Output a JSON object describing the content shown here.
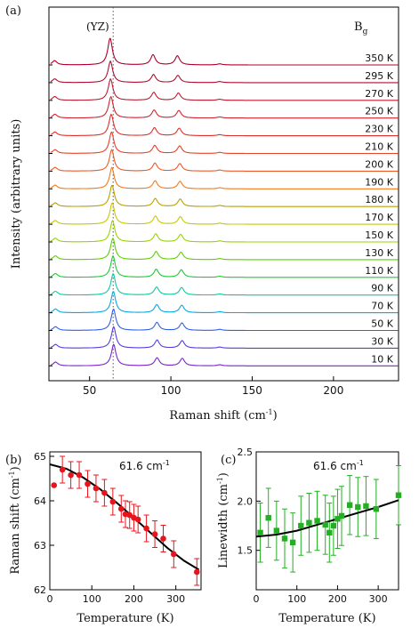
{
  "chart_data": [
    {
      "panel_label": "(a)",
      "type": "line",
      "annotation": "(YZ)",
      "symmetry_label": "B",
      "symmetry_subscript": "g",
      "xlabel": "Raman shift (cm",
      "xlabel_sup": "-1",
      "xlabel_end": ")",
      "ylabel": "Intensity (arbitrary units)",
      "xlim": [
        25,
        240
      ],
      "xticks": [
        50,
        100,
        150,
        200
      ],
      "dotted_line_x": 64.5,
      "series": [
        {
          "name": "350 K",
          "color": "#b0002a",
          "peaks": [
            [
              62.6,
              1.0
            ],
            [
              89.0,
              0.38
            ],
            [
              104.0,
              0.34
            ],
            [
              28.5,
              0.16
            ],
            [
              130.0,
              0.04
            ]
          ]
        },
        {
          "name": "295 K",
          "color": "#b00f30",
          "peaks": [
            [
              62.8,
              0.8
            ],
            [
              89.3,
              0.3
            ],
            [
              104.3,
              0.27
            ],
            [
              28.6,
              0.14
            ],
            [
              130.0,
              0.04
            ]
          ]
        },
        {
          "name": "270 K",
          "color": "#c21a30",
          "peaks": [
            [
              62.9,
              0.8
            ],
            [
              89.5,
              0.3
            ],
            [
              104.6,
              0.27
            ],
            [
              28.6,
              0.14
            ],
            [
              130.0,
              0.04
            ]
          ]
        },
        {
          "name": "250 K",
          "color": "#d4242e",
          "peaks": [
            [
              63.1,
              0.8
            ],
            [
              89.7,
              0.3
            ],
            [
              104.9,
              0.28
            ],
            [
              28.7,
              0.14
            ],
            [
              130.0,
              0.04
            ]
          ]
        },
        {
          "name": "230 K",
          "color": "#e0302c",
          "peaks": [
            [
              63.3,
              0.8
            ],
            [
              89.9,
              0.3
            ],
            [
              105.1,
              0.28
            ],
            [
              28.7,
              0.14
            ],
            [
              130.0,
              0.04
            ]
          ]
        },
        {
          "name": "210 K",
          "color": "#e8422a",
          "peaks": [
            [
              63.5,
              0.8
            ],
            [
              90.1,
              0.3
            ],
            [
              105.4,
              0.28
            ],
            [
              28.8,
              0.14
            ],
            [
              130.0,
              0.04
            ]
          ]
        },
        {
          "name": "200 K",
          "color": "#ee5a26",
          "peaks": [
            [
              63.6,
              0.8
            ],
            [
              90.2,
              0.3
            ],
            [
              105.5,
              0.28
            ],
            [
              28.8,
              0.14
            ],
            [
              130.0,
              0.04
            ]
          ]
        },
        {
          "name": "190 K",
          "color": "#f27a1e",
          "peaks": [
            [
              63.7,
              0.8
            ],
            [
              90.3,
              0.3
            ],
            [
              105.6,
              0.28
            ],
            [
              28.8,
              0.14
            ],
            [
              130.0,
              0.04
            ]
          ]
        },
        {
          "name": "180 K",
          "color": "#b8a000",
          "peaks": [
            [
              63.8,
              0.8
            ],
            [
              90.4,
              0.3
            ],
            [
              105.7,
              0.28
            ],
            [
              28.9,
              0.14
            ],
            [
              130.0,
              0.04
            ]
          ]
        },
        {
          "name": "170 K",
          "color": "#c8c800",
          "peaks": [
            [
              63.9,
              0.8
            ],
            [
              90.5,
              0.3
            ],
            [
              105.8,
              0.28
            ],
            [
              28.9,
              0.14
            ],
            [
              130.0,
              0.04
            ]
          ]
        },
        {
          "name": "150 K",
          "color": "#9ad400",
          "peaks": [
            [
              64.1,
              0.8
            ],
            [
              90.7,
              0.3
            ],
            [
              106.0,
              0.28
            ],
            [
              28.9,
              0.14
            ],
            [
              130.0,
              0.04
            ]
          ]
        },
        {
          "name": "130 K",
          "color": "#5fd000",
          "peaks": [
            [
              64.3,
              0.8
            ],
            [
              90.9,
              0.3
            ],
            [
              106.2,
              0.28
            ],
            [
              29.0,
              0.14
            ],
            [
              130.0,
              0.04
            ]
          ]
        },
        {
          "name": "110 K",
          "color": "#22c83a",
          "peaks": [
            [
              64.4,
              0.8
            ],
            [
              91.0,
              0.3
            ],
            [
              106.4,
              0.28
            ],
            [
              29.0,
              0.14
            ],
            [
              130.0,
              0.04
            ]
          ]
        },
        {
          "name": "90 K",
          "color": "#10c8a0",
          "peaks": [
            [
              64.5,
              0.8
            ],
            [
              91.2,
              0.3
            ],
            [
              106.6,
              0.28
            ],
            [
              29.0,
              0.14
            ],
            [
              130.0,
              0.04
            ]
          ]
        },
        {
          "name": "70 K",
          "color": "#0aa8e0",
          "peaks": [
            [
              64.6,
              0.8
            ],
            [
              91.3,
              0.3
            ],
            [
              106.7,
              0.28
            ],
            [
              29.1,
              0.14
            ],
            [
              130.0,
              0.04
            ]
          ]
        },
        {
          "name": "50 K",
          "color": "#3060e8",
          "peaks": [
            [
              64.7,
              0.8
            ],
            [
              91.4,
              0.3
            ],
            [
              106.8,
              0.28
            ],
            [
              29.1,
              0.14
            ],
            [
              130.0,
              0.04
            ]
          ]
        },
        {
          "name": "30 K",
          "color": "#5a3ae0",
          "peaks": [
            [
              64.8,
              0.8
            ],
            [
              91.5,
              0.3
            ],
            [
              106.9,
              0.28
            ],
            [
              29.1,
              0.14
            ],
            [
              130.0,
              0.04
            ]
          ]
        },
        {
          "name": "10 K",
          "color": "#7a24c8",
          "peaks": [
            [
              64.8,
              0.8
            ],
            [
              91.5,
              0.3
            ],
            [
              107.0,
              0.28
            ],
            [
              29.1,
              0.14
            ],
            [
              130.0,
              0.04
            ]
          ]
        }
      ]
    },
    {
      "panel_label": "(b)",
      "type": "scatter",
      "annotation": "61.6 cm",
      "annotation_sup": "-1",
      "xlabel": "Temperature (K)",
      "ylabel": "Raman shift (cm",
      "ylabel_sup": "-1",
      "ylabel_end": ")",
      "xlim": [
        0,
        360
      ],
      "ylim": [
        62,
        65.1
      ],
      "xticks": [
        0,
        100,
        200,
        300
      ],
      "yticks": [
        62,
        63,
        64,
        65
      ],
      "marker_color": "#e8141c",
      "fit_color": "#000000",
      "fit_curve": [
        [
          0,
          64.82
        ],
        [
          40,
          64.72
        ],
        [
          80,
          64.52
        ],
        [
          120,
          64.26
        ],
        [
          160,
          63.95
        ],
        [
          200,
          63.62
        ],
        [
          240,
          63.28
        ],
        [
          280,
          62.94
        ],
        [
          320,
          62.65
        ],
        [
          355,
          62.45
        ]
      ],
      "points": [
        {
          "x": 10,
          "y": 64.35,
          "err": 0.0
        },
        {
          "x": 30,
          "y": 64.7,
          "err": 0.3
        },
        {
          "x": 50,
          "y": 64.58,
          "err": 0.3
        },
        {
          "x": 70,
          "y": 64.58,
          "err": 0.3
        },
        {
          "x": 90,
          "y": 64.38,
          "err": 0.3
        },
        {
          "x": 110,
          "y": 64.28,
          "err": 0.3
        },
        {
          "x": 130,
          "y": 64.18,
          "err": 0.3
        },
        {
          "x": 150,
          "y": 63.98,
          "err": 0.3
        },
        {
          "x": 170,
          "y": 63.82,
          "err": 0.3
        },
        {
          "x": 180,
          "y": 63.7,
          "err": 0.3
        },
        {
          "x": 190,
          "y": 63.68,
          "err": 0.3
        },
        {
          "x": 200,
          "y": 63.62,
          "err": 0.3
        },
        {
          "x": 210,
          "y": 63.58,
          "err": 0.3
        },
        {
          "x": 230,
          "y": 63.38,
          "err": 0.3
        },
        {
          "x": 250,
          "y": 63.25,
          "err": 0.3
        },
        {
          "x": 270,
          "y": 63.15,
          "err": 0.3
        },
        {
          "x": 295,
          "y": 62.8,
          "err": 0.3
        },
        {
          "x": 350,
          "y": 62.4,
          "err": 0.3
        }
      ]
    },
    {
      "panel_label": "(c)",
      "type": "scatter",
      "annotation": "61.6 cm",
      "annotation_sup": "-1",
      "xlabel": "Temperature (K)",
      "ylabel": "Linewidth (cm",
      "ylabel_sup": "-1",
      "ylabel_end": ")",
      "xlim": [
        0,
        350
      ],
      "ylim": [
        1.1,
        2.5
      ],
      "xticks": [
        0,
        100,
        200,
        300
      ],
      "yticks": [
        1.5,
        2.0,
        2.5
      ],
      "marker_color": "#22b022",
      "fit_color": "#000000",
      "fit_curve": [
        [
          0,
          1.64
        ],
        [
          50,
          1.66
        ],
        [
          100,
          1.7
        ],
        [
          150,
          1.76
        ],
        [
          200,
          1.82
        ],
        [
          250,
          1.88
        ],
        [
          300,
          1.94
        ],
        [
          350,
          2.01
        ]
      ],
      "points": [
        {
          "x": 10,
          "y": 1.68,
          "err": 0.3
        },
        {
          "x": 30,
          "y": 1.83,
          "err": 0.3
        },
        {
          "x": 50,
          "y": 1.7,
          "err": 0.3
        },
        {
          "x": 70,
          "y": 1.62,
          "err": 0.3
        },
        {
          "x": 90,
          "y": 1.58,
          "err": 0.3
        },
        {
          "x": 110,
          "y": 1.75,
          "err": 0.3
        },
        {
          "x": 130,
          "y": 1.78,
          "err": 0.3
        },
        {
          "x": 150,
          "y": 1.8,
          "err": 0.3
        },
        {
          "x": 170,
          "y": 1.76,
          "err": 0.3
        },
        {
          "x": 180,
          "y": 1.68,
          "err": 0.3
        },
        {
          "x": 190,
          "y": 1.75,
          "err": 0.3
        },
        {
          "x": 200,
          "y": 1.82,
          "err": 0.3
        },
        {
          "x": 210,
          "y": 1.85,
          "err": 0.3
        },
        {
          "x": 230,
          "y": 1.96,
          "err": 0.3
        },
        {
          "x": 250,
          "y": 1.94,
          "err": 0.3
        },
        {
          "x": 270,
          "y": 1.95,
          "err": 0.3
        },
        {
          "x": 295,
          "y": 1.92,
          "err": 0.3
        },
        {
          "x": 350,
          "y": 2.06,
          "err": 0.3
        }
      ]
    }
  ]
}
